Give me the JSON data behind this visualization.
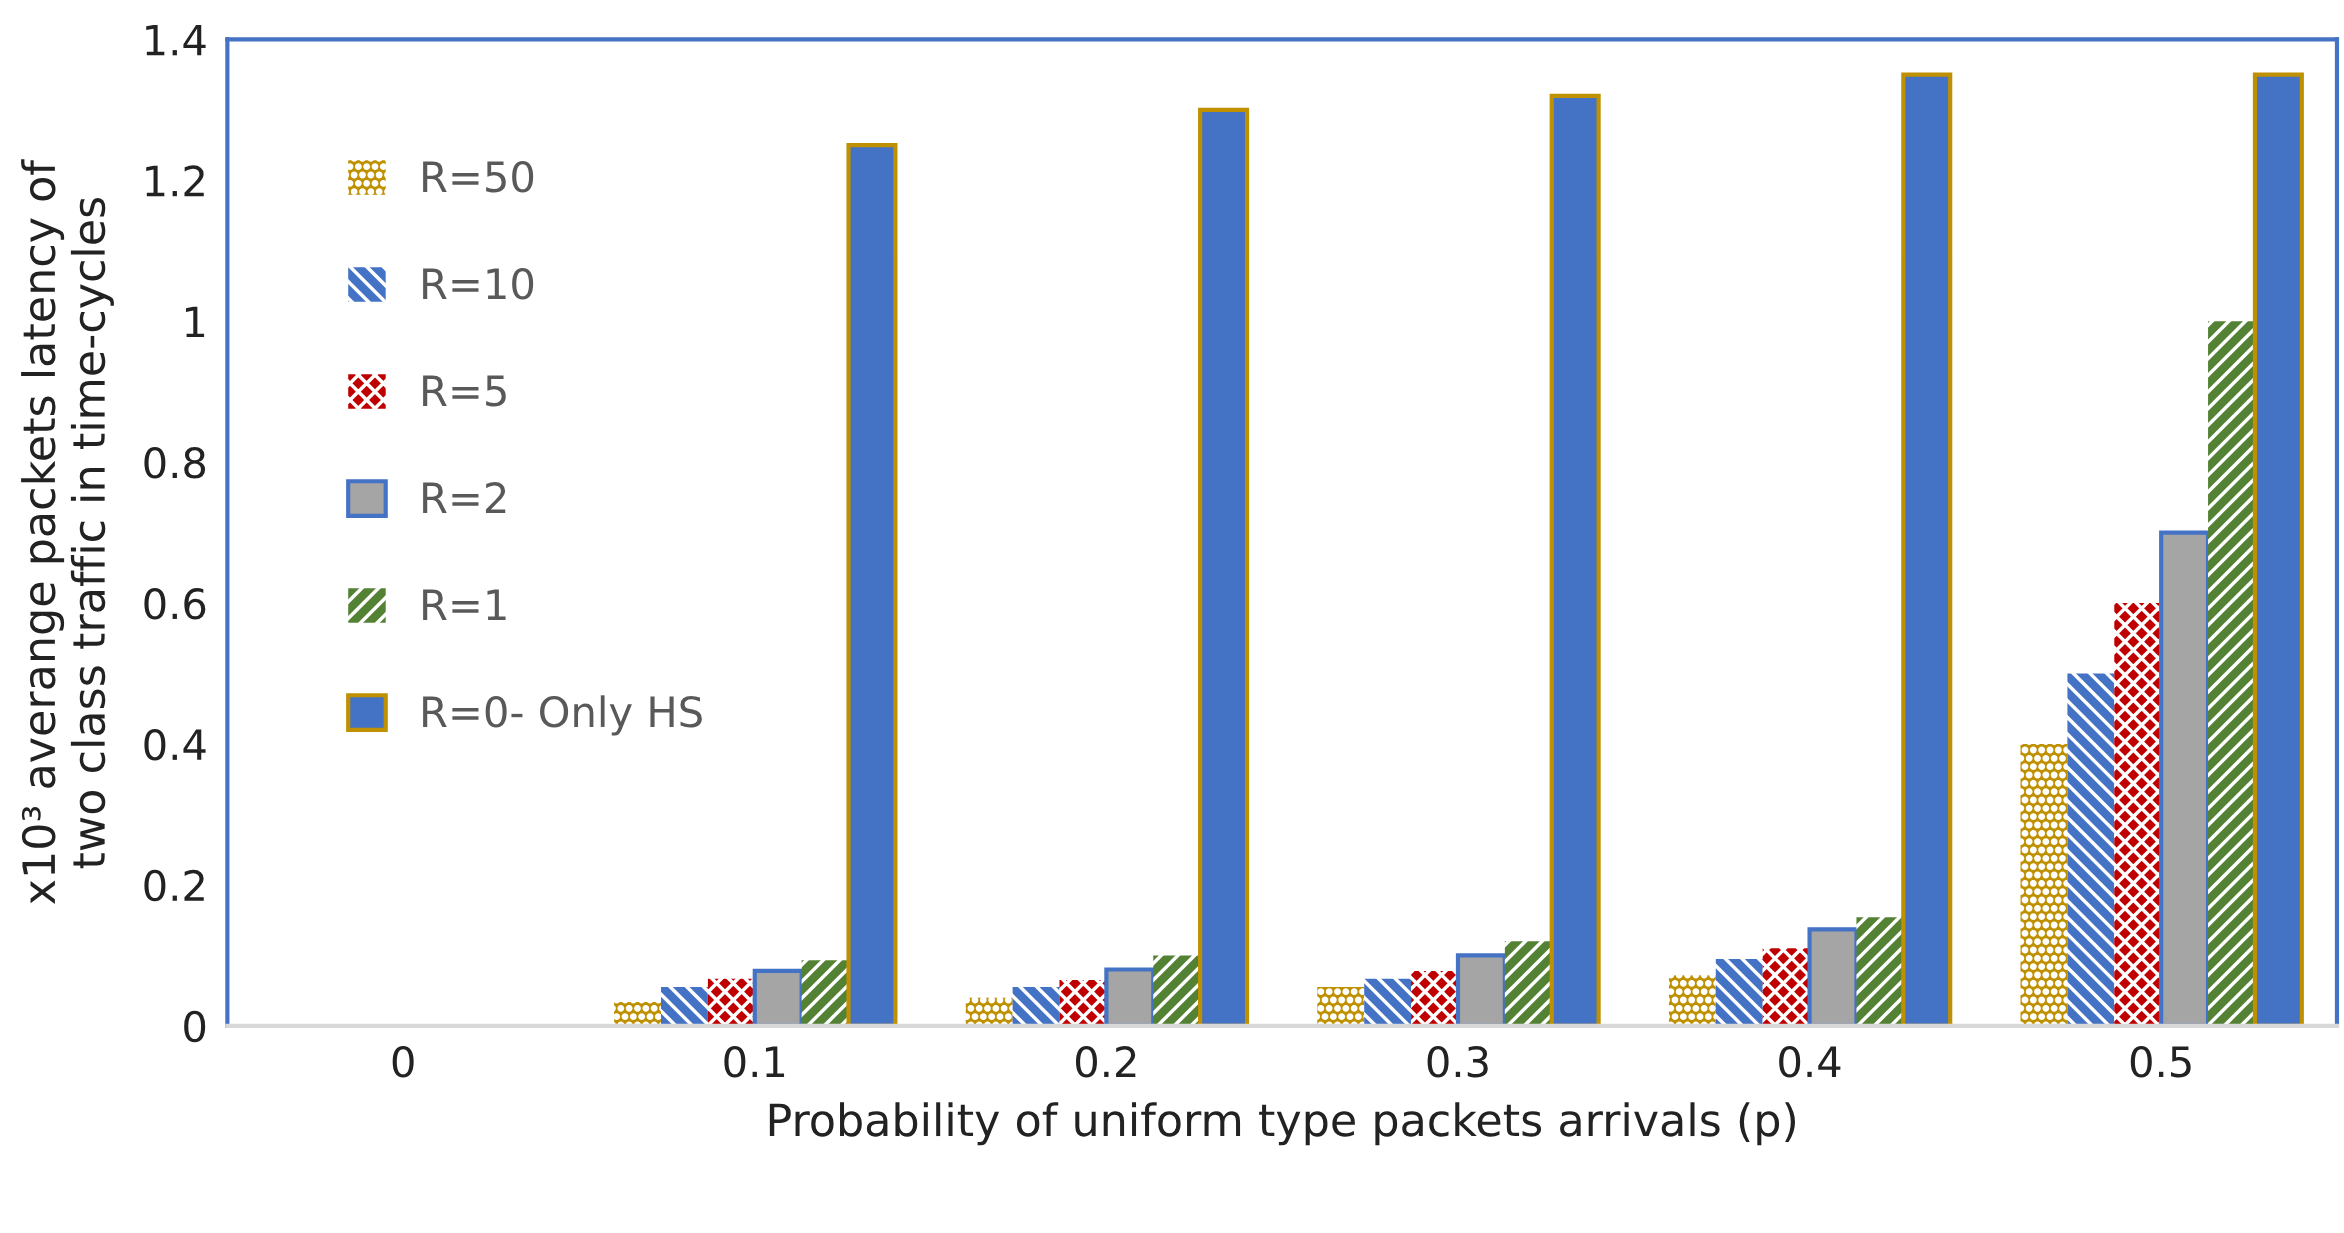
{
  "chart_data": {
    "type": "bar",
    "xlabel": "Probability of uniform type packets arrivals (p)",
    "ylabel": "x10³ averange packets latency of\ntwo class traffic in time-cycles",
    "categories": [
      "0",
      "0.1",
      "0.2",
      "0.3",
      "0.4",
      "0.5"
    ],
    "series": [
      {
        "name": "R=50",
        "color": "#bf9000",
        "values": [
          null,
          0.034,
          0.04,
          0.055,
          0.072,
          0.4
        ]
      },
      {
        "name": "R=10",
        "color": "#4472c4",
        "values": [
          null,
          0.055,
          0.055,
          0.067,
          0.095,
          0.5
        ]
      },
      {
        "name": "R=5",
        "color": "#c00000",
        "values": [
          null,
          0.067,
          0.065,
          0.078,
          0.11,
          0.6
        ]
      },
      {
        "name": "R=2",
        "color": "#a5a5a5",
        "values": [
          null,
          0.078,
          0.08,
          0.1,
          0.137,
          0.7
        ]
      },
      {
        "name": "R=1",
        "color": "#548235",
        "values": [
          null,
          0.093,
          0.1,
          0.12,
          0.154,
          1.0
        ]
      },
      {
        "name": "R=0- Only HS",
        "color": "#4472c4",
        "values": [
          null,
          1.25,
          1.3,
          1.32,
          1.35,
          1.35
        ]
      }
    ],
    "ylim": [
      0,
      1.4
    ],
    "yticks": [
      0,
      0.2,
      0.4,
      0.6,
      0.8,
      1,
      1.2,
      1.4
    ],
    "grid": false,
    "legend": "top left"
  }
}
